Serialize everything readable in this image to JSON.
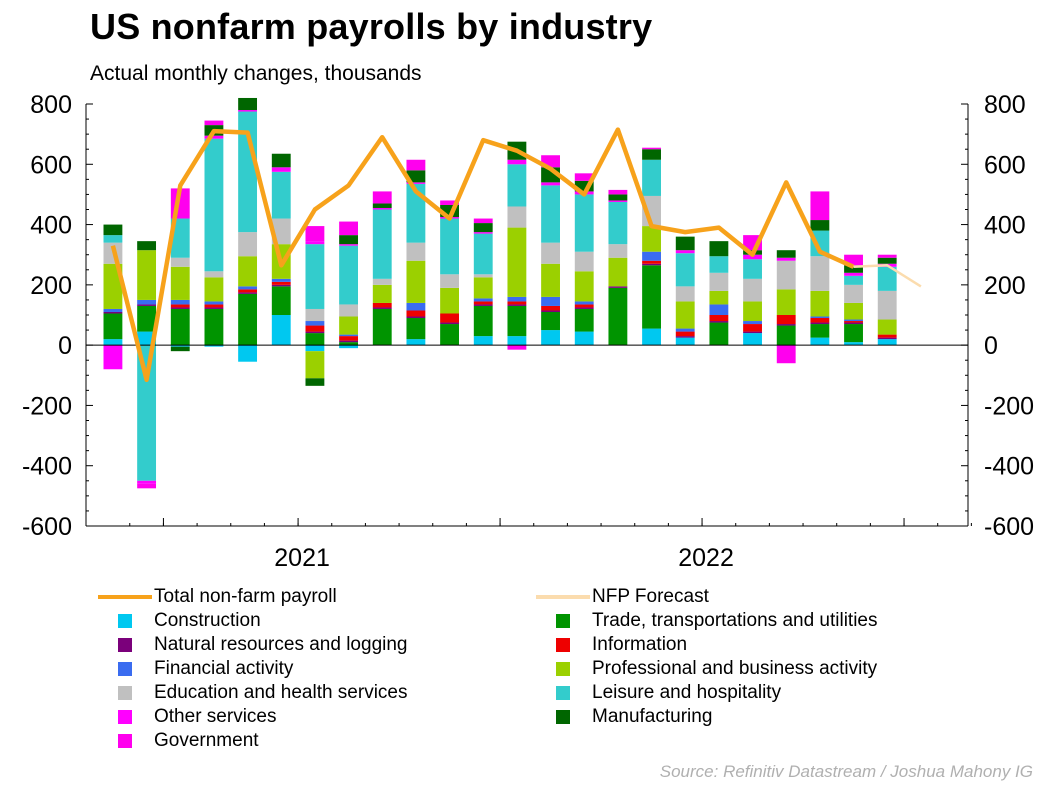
{
  "header": {
    "title": "US nonfarm payrolls by industry",
    "subtitle": "Actual monthly changes, thousands"
  },
  "source": "Source: Refinitiv Datastream / Joshua Mahony IG",
  "legend": [
    {
      "label": "Total non-farm payroll",
      "kind": "line",
      "color": "#f7a21b"
    },
    {
      "label": "NFP Forecast",
      "kind": "line",
      "color": "#fbdcae"
    },
    {
      "label": "Construction",
      "kind": "box",
      "color": "#00c8f0"
    },
    {
      "label": "Trade, transportations and utilities",
      "kind": "box",
      "color": "#009400"
    },
    {
      "label": "Natural resources and logging",
      "kind": "box",
      "color": "#7b007b"
    },
    {
      "label": "Information",
      "kind": "box",
      "color": "#ee0000"
    },
    {
      "label": "Financial activity",
      "kind": "box",
      "color": "#3a6cf0"
    },
    {
      "label": "Professional and business activity",
      "kind": "box",
      "color": "#9bd000"
    },
    {
      "label": "Education and health services",
      "kind": "box",
      "color": "#c0c0c0"
    },
    {
      "label": "Leisure and hospitality",
      "kind": "box",
      "color": "#33cccc"
    },
    {
      "label": "Other services",
      "kind": "box",
      "color": "#ff00ff"
    },
    {
      "label": "Manufacturing",
      "kind": "box",
      "color": "#006600"
    },
    {
      "label": "Government",
      "kind": "box",
      "color": "#ff00ee"
    }
  ],
  "chart_data": {
    "type": "bar",
    "stacked": true,
    "x_tick_labels": [
      "2021",
      "2022"
    ],
    "x_tick_label_month_index": [
      6,
      18
    ],
    "months": 26,
    "ylim": [
      -600,
      800
    ],
    "y_ticks": [
      -600,
      -400,
      -200,
      0,
      200,
      400,
      600,
      800
    ],
    "y_axis_left_and_right": true,
    "grid": false,
    "legend_placement": "bottom",
    "series": [
      {
        "name": "Construction",
        "color": "#00c8f0",
        "values": [
          20,
          45,
          -5,
          -5,
          -55,
          100,
          -20,
          -10,
          0,
          20,
          0,
          30,
          30,
          50,
          45,
          0,
          55,
          25,
          0,
          40,
          0,
          25,
          10,
          20,
          0,
          0
        ]
      },
      {
        "name": "Trade, transportations and utilities",
        "color": "#009400",
        "values": [
          85,
          85,
          120,
          120,
          170,
          95,
          40,
          10,
          120,
          70,
          70,
          100,
          100,
          60,
          75,
          190,
          210,
          0,
          75,
          0,
          65,
          45,
          60,
          0,
          0,
          0
        ]
      },
      {
        "name": "Natural resources and logging",
        "color": "#7b007b",
        "values": [
          5,
          5,
          5,
          5,
          5,
          5,
          5,
          5,
          5,
          5,
          5,
          5,
          5,
          5,
          5,
          5,
          5,
          5,
          5,
          5,
          5,
          5,
          5,
          5,
          0,
          0
        ]
      },
      {
        "name": "Information",
        "color": "#ee0000",
        "values": [
          0,
          0,
          10,
          10,
          10,
          10,
          20,
          15,
          15,
          20,
          30,
          10,
          10,
          15,
          10,
          0,
          10,
          15,
          20,
          25,
          30,
          15,
          5,
          10,
          0,
          0
        ]
      },
      {
        "name": "Financial activity",
        "color": "#3a6cf0",
        "values": [
          10,
          15,
          15,
          10,
          10,
          10,
          15,
          5,
          0,
          25,
          0,
          10,
          15,
          30,
          10,
          0,
          30,
          10,
          35,
          10,
          0,
          5,
          5,
          0,
          0,
          0
        ]
      },
      {
        "name": "Professional and business activity",
        "color": "#9bd000",
        "values": [
          150,
          165,
          110,
          80,
          100,
          115,
          -90,
          60,
          60,
          140,
          85,
          70,
          230,
          110,
          100,
          95,
          85,
          90,
          45,
          65,
          85,
          85,
          55,
          50,
          0,
          0
        ]
      },
      {
        "name": "Education and health services",
        "color": "#c0c0c0",
        "values": [
          70,
          0,
          30,
          20,
          80,
          85,
          40,
          40,
          20,
          60,
          45,
          10,
          70,
          70,
          65,
          45,
          100,
          50,
          60,
          75,
          95,
          115,
          60,
          95,
          0,
          0
        ]
      },
      {
        "name": "Leisure and hospitality",
        "color": "#33cccc",
        "values": [
          25,
          -450,
          130,
          440,
          400,
          155,
          215,
          195,
          230,
          195,
          185,
          135,
          140,
          190,
          190,
          140,
          120,
          110,
          55,
          65,
          0,
          85,
          30,
          80,
          0,
          0
        ]
      },
      {
        "name": "Other services",
        "color": "#ff00ff",
        "values": [
          -80,
          -10,
          0,
          10,
          5,
          15,
          10,
          5,
          5,
          5,
          5,
          5,
          15,
          10,
          10,
          5,
          0,
          10,
          0,
          15,
          10,
          0,
          10,
          10,
          0,
          0
        ]
      },
      {
        "name": "Manufacturing",
        "color": "#006600",
        "values": [
          35,
          30,
          -15,
          35,
          40,
          45,
          -25,
          30,
          15,
          40,
          40,
          30,
          60,
          50,
          35,
          20,
          35,
          45,
          50,
          15,
          25,
          35,
          25,
          20,
          0,
          0
        ]
      },
      {
        "name": "Government",
        "color": "#ff00ee",
        "values": [
          0,
          -15,
          100,
          15,
          0,
          0,
          50,
          45,
          40,
          35,
          15,
          15,
          -15,
          40,
          25,
          15,
          5,
          0,
          0,
          50,
          -60,
          95,
          35,
          10,
          0,
          0
        ]
      }
    ],
    "lines": [
      {
        "name": "Total non-farm payroll",
        "color": "#f7a21b",
        "values": [
          330,
          -115,
          530,
          710,
          705,
          265,
          450,
          530,
          690,
          510,
          420,
          680,
          645,
          585,
          500,
          715,
          395,
          375,
          390,
          300,
          540,
          310,
          260,
          null,
          null,
          null
        ]
      },
      {
        "name": "NFP Forecast",
        "color": "#fbdcae",
        "values": [
          null,
          null,
          null,
          null,
          null,
          null,
          null,
          null,
          null,
          null,
          null,
          null,
          null,
          null,
          null,
          null,
          null,
          null,
          null,
          null,
          null,
          null,
          260,
          265,
          195,
          null
        ]
      }
    ]
  }
}
